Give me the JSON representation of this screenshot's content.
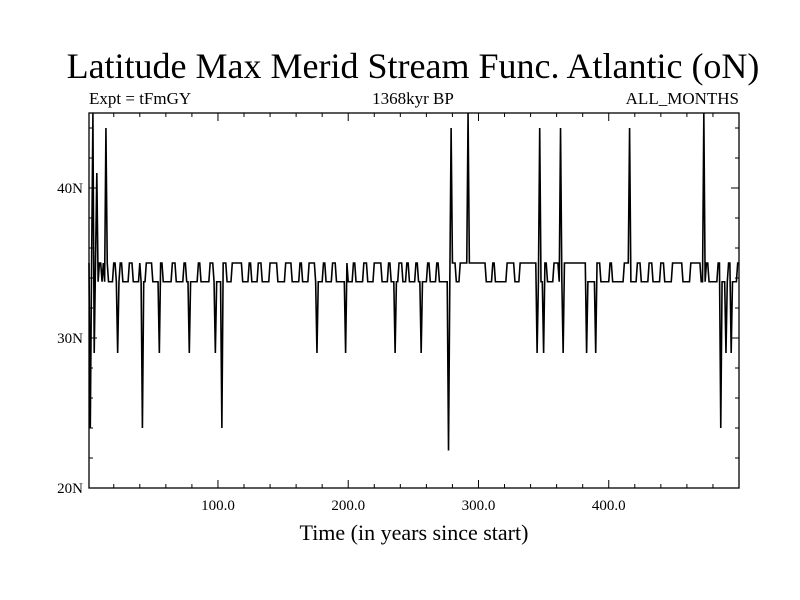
{
  "chart_data": {
    "type": "line",
    "title": "Latitude Max Merid Stream Func. Atlantic (oN)",
    "subtitle_left": "Expt = tFmGY",
    "subtitle_center": "1368kyr BP",
    "subtitle_right": "ALL_MONTHS",
    "xlabel": "Time (in years since start)",
    "ylabel": "",
    "xlim": [
      1,
      500
    ],
    "ylim": [
      20,
      45
    ],
    "x_ticks": [
      100,
      200,
      300,
      400
    ],
    "x_tick_labels": [
      "100.0",
      "200.0",
      "300.0",
      "400.0"
    ],
    "y_ticks": [
      20,
      30,
      40
    ],
    "y_tick_labels": [
      "20N",
      "30N",
      "40N"
    ],
    "grid": false,
    "legend": "none",
    "series_color": "#000000",
    "base_value": 33.75,
    "high_value": 35.0,
    "elevated_intervals": [
      [
        1,
        1
      ],
      [
        3,
        3
      ],
      [
        6,
        6
      ],
      [
        9,
        10
      ],
      [
        12,
        12
      ],
      [
        15,
        15
      ],
      [
        20,
        21
      ],
      [
        25,
        26
      ],
      [
        32,
        34
      ],
      [
        40,
        40
      ],
      [
        45,
        49
      ],
      [
        56,
        57
      ],
      [
        65,
        67
      ],
      [
        74,
        75
      ],
      [
        85,
        86
      ],
      [
        94,
        96
      ],
      [
        104,
        106
      ],
      [
        111,
        118
      ],
      [
        124,
        125
      ],
      [
        131,
        133
      ],
      [
        140,
        145
      ],
      [
        152,
        156
      ],
      [
        163,
        164
      ],
      [
        170,
        174
      ],
      [
        181,
        182
      ],
      [
        188,
        190
      ],
      [
        198,
        199
      ],
      [
        204,
        205
      ],
      [
        212,
        214
      ],
      [
        220,
        225
      ],
      [
        231,
        232
      ],
      [
        239,
        241
      ],
      [
        245,
        246
      ],
      [
        252,
        253
      ],
      [
        261,
        262
      ],
      [
        268,
        269
      ],
      [
        279,
        282
      ],
      [
        286,
        305
      ],
      [
        311,
        312
      ],
      [
        322,
        327
      ],
      [
        332,
        344
      ],
      [
        350,
        352
      ],
      [
        358,
        361
      ],
      [
        366,
        382
      ],
      [
        390,
        393
      ],
      [
        401,
        402
      ],
      [
        412,
        416
      ],
      [
        422,
        424
      ],
      [
        431,
        433
      ],
      [
        440,
        442
      ],
      [
        449,
        456
      ],
      [
        463,
        470
      ],
      [
        475,
        476
      ],
      [
        484,
        485
      ],
      [
        492,
        493
      ],
      [
        499,
        500
      ]
    ],
    "spikes": [
      {
        "x": 2,
        "y": 24
      },
      {
        "x": 4,
        "y": 45
      },
      {
        "x": 5,
        "y": 29
      },
      {
        "x": 7,
        "y": 41
      },
      {
        "x": 14,
        "y": 44
      },
      {
        "x": 23,
        "y": 29
      },
      {
        "x": 42,
        "y": 24
      },
      {
        "x": 55,
        "y": 29
      },
      {
        "x": 78,
        "y": 29
      },
      {
        "x": 98,
        "y": 29
      },
      {
        "x": 103,
        "y": 24
      },
      {
        "x": 176,
        "y": 29
      },
      {
        "x": 198,
        "y": 29
      },
      {
        "x": 236,
        "y": 29
      },
      {
        "x": 256,
        "y": 29
      },
      {
        "x": 277,
        "y": 22.5
      },
      {
        "x": 279,
        "y": 44
      },
      {
        "x": 292,
        "y": 45
      },
      {
        "x": 345,
        "y": 29
      },
      {
        "x": 347,
        "y": 44
      },
      {
        "x": 350,
        "y": 29
      },
      {
        "x": 363,
        "y": 44
      },
      {
        "x": 365,
        "y": 29
      },
      {
        "x": 383,
        "y": 29
      },
      {
        "x": 390,
        "y": 29
      },
      {
        "x": 416,
        "y": 44
      },
      {
        "x": 473,
        "y": 45
      },
      {
        "x": 486,
        "y": 24
      },
      {
        "x": 490,
        "y": 29
      },
      {
        "x": 494,
        "y": 29
      }
    ]
  }
}
